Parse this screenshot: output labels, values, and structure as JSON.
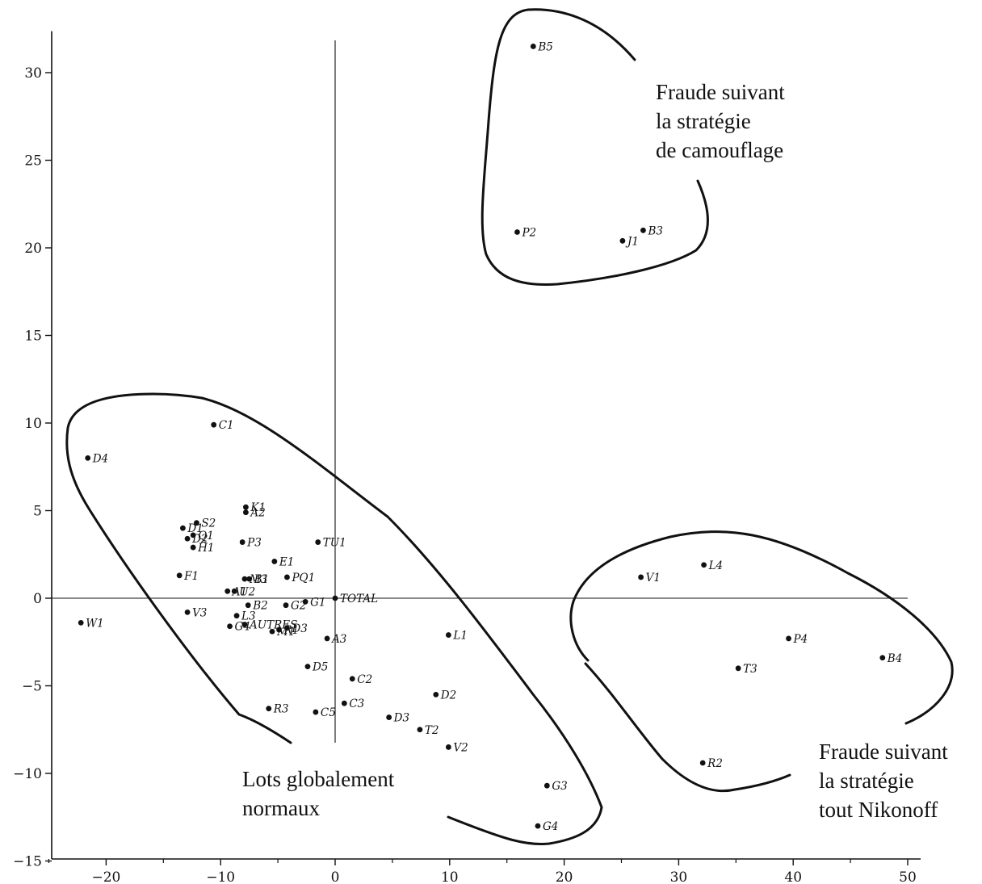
{
  "chart_data": {
    "type": "scatter",
    "xlim": [
      -25,
      50
    ],
    "ylim": [
      -15,
      32
    ],
    "x_ticks": [
      -20,
      -10,
      0,
      10,
      20,
      30,
      40,
      50
    ],
    "y_ticks": [
      -15,
      -10,
      -5,
      0,
      5,
      10,
      15,
      20,
      25,
      30
    ],
    "x_tick_labels": [
      "−20",
      "−10",
      "0",
      "10",
      "20",
      "30",
      "40",
      "50"
    ],
    "y_tick_labels": [
      "−15",
      "−10",
      "−5",
      "0",
      "5",
      "10",
      "15",
      "20",
      "25",
      "30"
    ],
    "grid": false,
    "reference_lines": {
      "x": 0,
      "y": 0
    },
    "points": [
      {
        "label": "B5",
        "x": 17.3,
        "y": 31.5
      },
      {
        "label": "P2",
        "x": 15.9,
        "y": 20.9
      },
      {
        "label": "B3",
        "x": 26.9,
        "y": 21.0
      },
      {
        "label": "J1",
        "x": 25.1,
        "y": 20.4
      },
      {
        "label": "C1",
        "x": -10.6,
        "y": 9.9
      },
      {
        "label": "D4",
        "x": -21.6,
        "y": 8.0
      },
      {
        "label": "K1",
        "x": -7.8,
        "y": 5.2
      },
      {
        "label": "A2",
        "x": -7.8,
        "y": 4.9
      },
      {
        "label": "S2",
        "x": -12.1,
        "y": 4.3
      },
      {
        "label": "D1",
        "x": -13.3,
        "y": 4.0
      },
      {
        "label": "Q1",
        "x": -12.4,
        "y": 3.6
      },
      {
        "label": "D2",
        "x": -12.9,
        "y": 3.4
      },
      {
        "label": "H1",
        "x": -12.4,
        "y": 2.9
      },
      {
        "label": "P3",
        "x": -8.1,
        "y": 3.2
      },
      {
        "label": "TU1",
        "x": -1.5,
        "y": 3.2
      },
      {
        "label": "E1",
        "x": -5.3,
        "y": 2.1
      },
      {
        "label": "F1",
        "x": -13.6,
        "y": 1.3
      },
      {
        "label": "M3",
        "x": -7.9,
        "y": 1.1
      },
      {
        "label": "B1",
        "x": -7.5,
        "y": 1.1
      },
      {
        "label": "PQ1",
        "x": -4.2,
        "y": 1.2
      },
      {
        "label": "A1",
        "x": -9.4,
        "y": 0.4
      },
      {
        "label": "U2",
        "x": -8.8,
        "y": 0.4
      },
      {
        "label": "TOTAL",
        "x": 0.0,
        "y": 0.0
      },
      {
        "label": "B2",
        "x": -7.6,
        "y": -0.4
      },
      {
        "label": "G2",
        "x": -4.3,
        "y": -0.4
      },
      {
        "label": "G1",
        "x": -2.6,
        "y": -0.2
      },
      {
        "label": "V3",
        "x": -12.9,
        "y": -0.8
      },
      {
        "label": "W1",
        "x": -22.2,
        "y": -1.4
      },
      {
        "label": "G4",
        "x": -9.2,
        "y": -1.6
      },
      {
        "label": "AUTRES",
        "x": -7.9,
        "y": -1.5
      },
      {
        "label": "L3",
        "x": -8.6,
        "y": -1.0
      },
      {
        "label": "R1",
        "x": -4.9,
        "y": -1.8
      },
      {
        "label": "D3",
        "x": -4.2,
        "y": -1.7
      },
      {
        "label": "M1",
        "x": -5.5,
        "y": -1.9
      },
      {
        "label": "L1",
        "x": 9.9,
        "y": -2.1
      },
      {
        "label": "A3",
        "x": -0.7,
        "y": -2.3
      },
      {
        "label": "D5",
        "x": -2.4,
        "y": -3.9
      },
      {
        "label": "C2",
        "x": 1.5,
        "y": -4.6
      },
      {
        "label": "D2",
        "x": 8.8,
        "y": -5.5
      },
      {
        "label": "C3",
        "x": 0.8,
        "y": -6.0
      },
      {
        "label": "R3",
        "x": -5.8,
        "y": -6.3
      },
      {
        "label": "C5",
        "x": -1.7,
        "y": -6.5
      },
      {
        "label": "D3",
        "x": 4.7,
        "y": -6.8
      },
      {
        "label": "T2",
        "x": 7.4,
        "y": -7.5
      },
      {
        "label": "V2",
        "x": 9.9,
        "y": -8.5
      },
      {
        "label": "G3",
        "x": 18.5,
        "y": -10.7
      },
      {
        "label": "G4",
        "x": 17.7,
        "y": -13.0
      },
      {
        "label": "V1",
        "x": 26.7,
        "y": 1.2
      },
      {
        "label": "L4",
        "x": 32.2,
        "y": 1.9
      },
      {
        "label": "P4",
        "x": 39.6,
        "y": -2.3
      },
      {
        "label": "B4",
        "x": 47.8,
        "y": -3.4
      },
      {
        "label": "T3",
        "x": 35.2,
        "y": -4.0
      },
      {
        "label": "R2",
        "x": 32.1,
        "y": -9.4
      }
    ],
    "annotations": [
      {
        "lines": [
          "Fraude suivant",
          "la stratégie",
          "de camouflage"
        ]
      },
      {
        "lines": [
          "Lots globalement",
          "normaux"
        ]
      },
      {
        "lines": [
          "Fraude suivant",
          "la stratégie",
          "tout Nikonoff"
        ]
      }
    ]
  }
}
